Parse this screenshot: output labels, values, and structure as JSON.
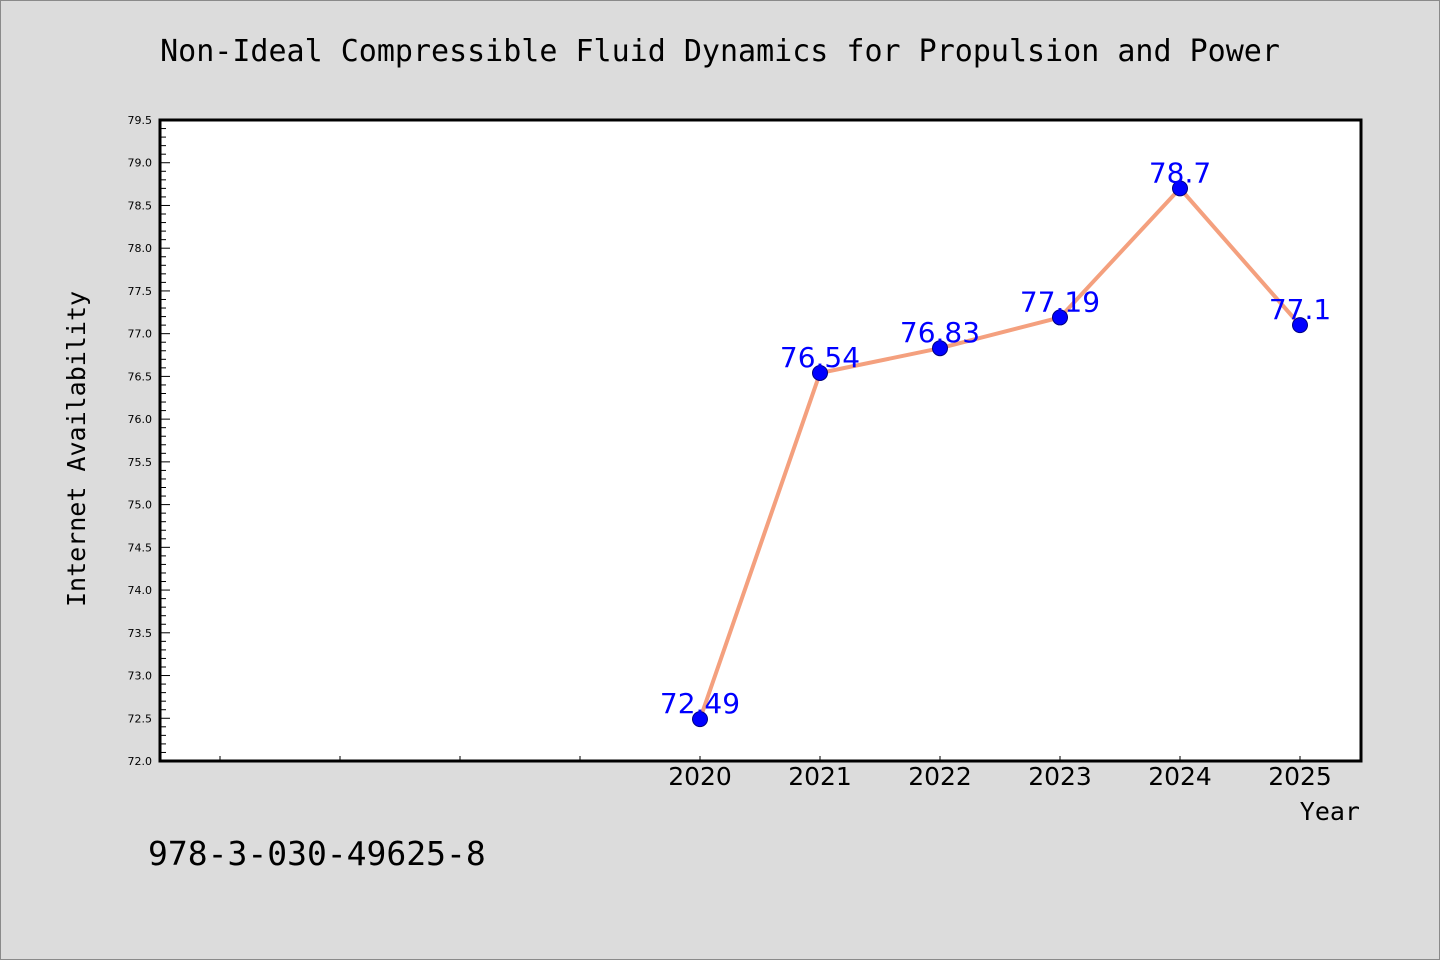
{
  "chart_data": {
    "type": "line",
    "title": "Non-Ideal Compressible Fluid Dynamics for Propulsion and Power",
    "xlabel": "Year",
    "ylabel": "Internet Availability",
    "categories": [
      "2020",
      "2021",
      "2022",
      "2023",
      "2024",
      "2025"
    ],
    "series": [
      {
        "values": [
          72.49,
          76.54,
          76.83,
          77.19,
          78.7,
          77.1
        ],
        "data_labels": [
          "72.49",
          "76.54",
          "76.83",
          "77.19",
          "78.7",
          "77.1"
        ]
      }
    ],
    "ylim": [
      72.0,
      79.5
    ],
    "y_major_step": 0.5,
    "y_minor_step": 0.1,
    "y_tick_labels": [
      "72.0",
      "72.5",
      "73.0",
      "73.5",
      "74.0",
      "74.5",
      "75.0",
      "75.5",
      "76.0",
      "76.5",
      "77.0",
      "77.5",
      "78.0",
      "78.5",
      "79.0",
      "79.5"
    ],
    "grid": false,
    "legend": "none",
    "colors": {
      "line": "#f4a07e",
      "marker": "#0000ff",
      "data_label": "#0000ff",
      "background": "#dcdcdc",
      "plot_background": "#ffffff"
    }
  },
  "footer": {
    "code": "978-3-030-49625-8"
  }
}
